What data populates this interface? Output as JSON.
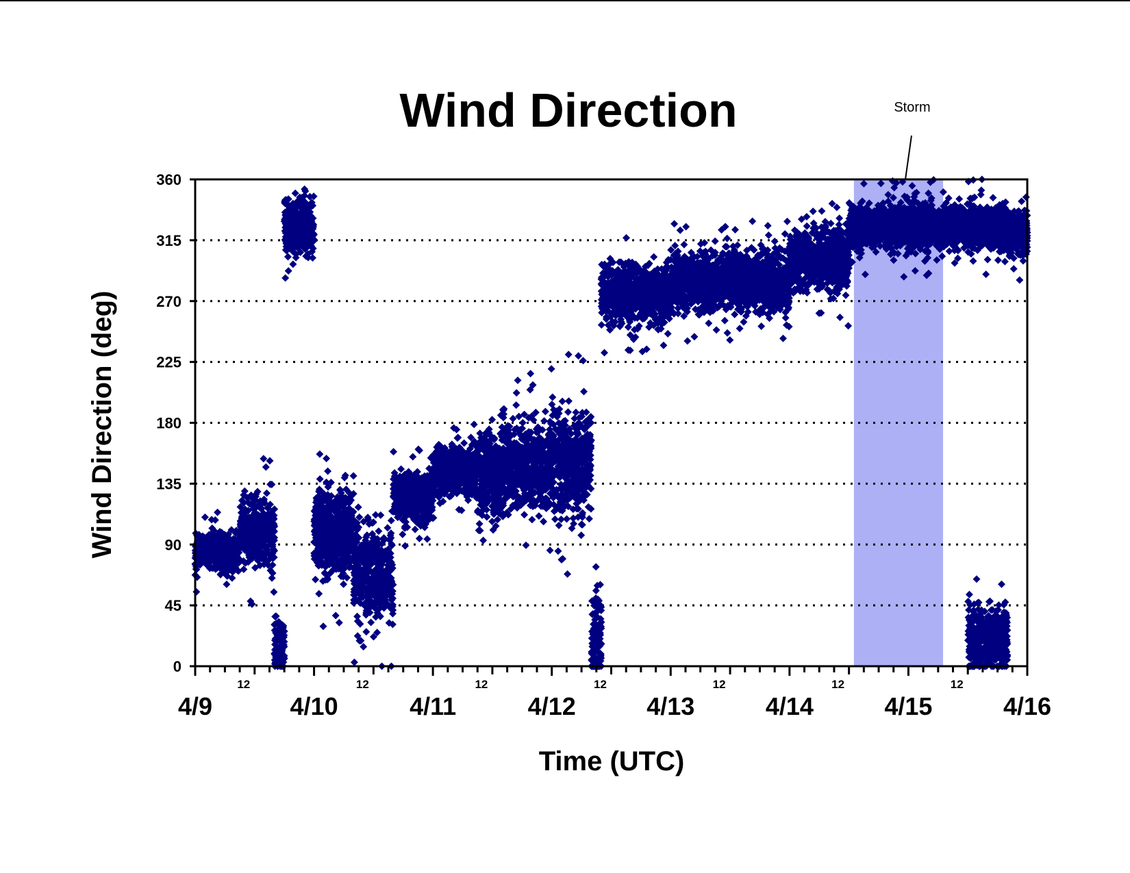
{
  "chart_data": {
    "type": "scatter",
    "title": "Wind Direction",
    "xlabel": "Time (UTC)",
    "ylabel": "Wind Direction (deg)",
    "x_unit": "day",
    "xlim": [
      "4/9 00:00",
      "4/16 00:00"
    ],
    "ylim": [
      0,
      360
    ],
    "yticks": [
      0,
      45,
      90,
      135,
      180,
      225,
      270,
      315,
      360
    ],
    "x_major_labels": [
      "4/9",
      "4/10",
      "4/11",
      "4/12",
      "4/13",
      "4/14",
      "4/15",
      "4/16"
    ],
    "x_minor_label": "12",
    "grid": "horizontal dotted lines",
    "legend": "none",
    "marker": "diamond",
    "marker_color": "#000080",
    "annotation": {
      "text": "Storm",
      "highlight_span": [
        "4/14 13:00",
        "4/15 07:00"
      ],
      "highlight_color": "#aeb0f6"
    },
    "series": [
      {
        "segments": [
          {
            "x": [
              "4/9 00:00",
              "4/9 09:00"
            ],
            "y_center": 85,
            "y_spread": 12
          },
          {
            "x": [
              "4/9 09:00",
              "4/9 16:00"
            ],
            "y_center": 100,
            "y_spread": 22
          },
          {
            "x": [
              "4/9 16:00",
              "4/9 18:00"
            ],
            "y_center": 15,
            "y_spread": 20
          },
          {
            "x": [
              "4/9 18:00",
              "4/10 00:00"
            ],
            "y_center": 325,
            "y_spread": 18
          },
          {
            "x": [
              "4/10 00:00",
              "4/10 08:00"
            ],
            "y_center": 100,
            "y_spread": 30
          },
          {
            "x": [
              "4/10 08:00",
              "4/10 16:00"
            ],
            "y_center": 70,
            "y_spread": 30
          },
          {
            "x": [
              "4/10 16:00",
              "4/11 00:00"
            ],
            "y_center": 125,
            "y_spread": 15
          },
          {
            "x": [
              "4/11 00:00",
              "4/11 09:00"
            ],
            "y_center": 145,
            "y_spread": 15
          },
          {
            "x": [
              "4/11 09:00",
              "4/11 14:00"
            ],
            "y_center": 140,
            "y_spread": 28
          },
          {
            "x": [
              "4/11 14:00",
              "4/12 00:00"
            ],
            "y_center": 150,
            "y_spread": 28
          },
          {
            "x": [
              "4/12 00:00",
              "4/12 08:00"
            ],
            "y_center": 150,
            "y_spread": 35
          },
          {
            "x": [
              "4/12 08:00",
              "4/12 10:00"
            ],
            "y_center": 20,
            "y_spread": 30
          },
          {
            "x": [
              "4/12 10:00",
              "4/13 00:00"
            ],
            "y_center": 275,
            "y_spread": 18
          },
          {
            "x": [
              "4/13 00:00",
              "4/14 00:00"
            ],
            "y_center": 285,
            "y_spread": 18
          },
          {
            "x": [
              "4/14 00:00",
              "4/14 12:00"
            ],
            "y_center": 300,
            "y_spread": 20
          },
          {
            "x": [
              "4/14 12:00",
              "4/15 00:00"
            ],
            "y_center": 325,
            "y_spread": 15
          },
          {
            "x": [
              "4/15 00:00",
              "4/15 12:00"
            ],
            "y_center": 325,
            "y_spread": 15
          },
          {
            "x": [
              "4/15 12:00",
              "4/15 20:00"
            ],
            "y_center": 325,
            "y_spread": 15
          },
          {
            "x": [
              "4/15 12:00",
              "4/15 20:00"
            ],
            "y_center": 20,
            "y_spread": 20
          },
          {
            "x": [
              "4/15 20:00",
              "4/16 00:00"
            ],
            "y_center": 320,
            "y_spread": 15
          }
        ]
      }
    ]
  }
}
